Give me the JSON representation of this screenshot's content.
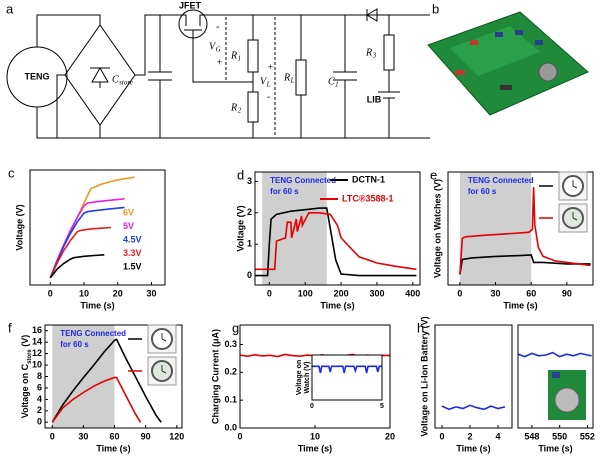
{
  "diagram": {
    "label": "a",
    "labels": [
      {
        "text": "TENG"
      },
      {
        "text": "C",
        "sub": "store"
      },
      {
        "text": "JFET"
      },
      {
        "text": "-"
      },
      {
        "text": "V",
        "sub": "G"
      },
      {
        "text": "+"
      },
      {
        "text": "R",
        "sub": "1"
      },
      {
        "text": "R",
        "sub": "2"
      },
      {
        "text": "+"
      },
      {
        "text": "V",
        "sub": "L"
      },
      {
        "text": "-"
      },
      {
        "text": "R",
        "sub": "L"
      },
      {
        "text": "C",
        "sub": "1"
      },
      {
        "text": "R",
        "sub": "3"
      },
      {
        "text": "LIB"
      }
    ]
  },
  "photo": {
    "label": "b"
  },
  "chart_data": [
    {
      "type": "line",
      "label": "c",
      "xlabel": "Time (s)",
      "ylabel": "Voltage  (V)",
      "xlim": [
        -6,
        34
      ],
      "ylim": [
        -0.5,
        7.5
      ],
      "xticks": [
        0,
        10,
        20,
        30
      ],
      "legend": "right-text",
      "series": [
        {
          "name": "6V",
          "color": "#f0961e",
          "x": [
            0,
            2,
            4,
            6,
            8,
            10,
            12,
            15,
            18,
            21,
            25
          ],
          "values": [
            0,
            1.2,
            2.3,
            3.3,
            4.2,
            5.2,
            6.2,
            6.5,
            6.7,
            6.85,
            7.0
          ]
        },
        {
          "name": "5V",
          "color": "#e81ee8",
          "x": [
            0,
            2,
            4,
            6,
            8,
            10,
            11,
            14,
            18,
            22
          ],
          "values": [
            0,
            1.2,
            2.3,
            3.3,
            4.2,
            5.0,
            5.2,
            5.3,
            5.4,
            5.5
          ]
        },
        {
          "name": "4.5V",
          "color": "#1e3cf0",
          "x": [
            0,
            2,
            4,
            6,
            8,
            10,
            11,
            14,
            18,
            22
          ],
          "values": [
            0,
            1.1,
            2.2,
            3.1,
            3.9,
            4.5,
            4.6,
            4.7,
            4.8,
            4.9
          ]
        },
        {
          "name": "3.3V",
          "color": "#e61e1e",
          "x": [
            0,
            2,
            4,
            6,
            8,
            9,
            12,
            15,
            18
          ],
          "values": [
            0,
            1.0,
            1.9,
            2.6,
            3.2,
            3.3,
            3.4,
            3.45,
            3.5
          ]
        },
        {
          "name": "1.5V",
          "color": "#000000",
          "x": [
            0,
            2,
            4,
            6,
            7,
            10,
            13,
            16
          ],
          "values": [
            0,
            0.6,
            1.0,
            1.3,
            1.4,
            1.5,
            1.55,
            1.6
          ]
        }
      ]
    },
    {
      "type": "line",
      "label": "d",
      "xlabel": "Time (s)",
      "ylabel": "Voltage  (V)",
      "xlim": [
        -40,
        420
      ],
      "ylim": [
        -0.3,
        3.3
      ],
      "xticks": [
        0,
        100,
        200,
        300,
        400
      ],
      "yticks": [
        0,
        1,
        2,
        3
      ],
      "shade": [
        -20,
        160
      ],
      "annotation": [
        "TENG Connected",
        "for 60 s"
      ],
      "legend": "upper-right",
      "series": [
        {
          "name": "DCTN-1",
          "color": "#000000",
          "x": [
            -40,
            -5,
            0,
            5,
            20,
            60,
            100,
            140,
            160,
            170,
            185,
            200,
            250,
            300,
            350,
            410
          ],
          "values": [
            0,
            0,
            1.0,
            1.8,
            1.95,
            2.05,
            2.1,
            2.15,
            2.15,
            1.5,
            0.5,
            0.05,
            0,
            0,
            0,
            0
          ]
        },
        {
          "name": "LTC®3588-1",
          "color": "#e60000",
          "x": [
            -40,
            15,
            20,
            45,
            50,
            60,
            62,
            75,
            78,
            90,
            92,
            110,
            140,
            170,
            190,
            200,
            250,
            300,
            350,
            410
          ],
          "values": [
            0.2,
            0.2,
            1.1,
            1.2,
            1.7,
            1.7,
            1.2,
            1.8,
            1.4,
            1.9,
            1.6,
            2.0,
            2.0,
            1.95,
            1.6,
            1.2,
            0.6,
            0.4,
            0.3,
            0.2
          ]
        }
      ]
    },
    {
      "type": "line",
      "label": "e",
      "xlabel": "Time (s)",
      "ylabel": "Voltage on Watches (V)",
      "xlim": [
        -10,
        112
      ],
      "ylim": [
        -0.5,
        7
      ],
      "xticks": [
        0,
        30,
        60,
        90
      ],
      "shade": [
        0,
        60
      ],
      "annotation": [
        "TENG Connected",
        "for 60 s"
      ],
      "legend": "right-icons",
      "series": [
        {
          "color": "#000000",
          "x": [
            0,
            2,
            10,
            30,
            50,
            60,
            62,
            65,
            70,
            90,
            110
          ],
          "values": [
            0.2,
            1.2,
            1.3,
            1.4,
            1.45,
            1.5,
            1.0,
            1.0,
            1.0,
            0.9,
            0.9
          ]
        },
        {
          "color": "#e60000",
          "x": [
            0,
            2,
            5,
            20,
            40,
            58,
            61,
            62,
            63,
            66,
            70,
            80,
            90,
            100,
            110
          ],
          "values": [
            0.2,
            2.6,
            2.7,
            2.8,
            2.9,
            3.0,
            3.2,
            6.0,
            3.5,
            2.0,
            1.4,
            1.1,
            1.0,
            0.9,
            0.8
          ]
        }
      ]
    },
    {
      "type": "line",
      "label": "f",
      "xlabel": "Time (s)",
      "ylabel": {
        "text": "Voltage on C",
        "sub": "store",
        "unit": " (V)"
      },
      "xlim": [
        -7,
        125
      ],
      "ylim": [
        -1,
        17
      ],
      "xticks": [
        0,
        30,
        60,
        90,
        120
      ],
      "yticks": [
        0,
        2,
        4,
        6,
        8,
        10,
        12,
        14,
        16
      ],
      "shade": [
        0,
        60
      ],
      "annotation": [
        "TENG Connected",
        "for 60 s"
      ],
      "legend": "right-icons",
      "series": [
        {
          "color": "#000000",
          "x": [
            0,
            10,
            20,
            30,
            40,
            50,
            60,
            62,
            70,
            80,
            90,
            100,
            105
          ],
          "values": [
            0,
            3,
            5.5,
            7.8,
            10,
            12.3,
            14.3,
            14.5,
            11.5,
            8,
            4.5,
            1.2,
            0
          ]
        },
        {
          "color": "#e60000",
          "x": [
            0,
            10,
            20,
            30,
            40,
            50,
            60,
            62,
            70,
            80,
            85
          ],
          "values": [
            0,
            2.5,
            4,
            5.2,
            6.3,
            7.2,
            7.8,
            7.8,
            5,
            1.5,
            0
          ]
        }
      ]
    },
    {
      "type": "line",
      "label": "g",
      "xlabel": "Time (s)",
      "ylabel": "Charging Current  (μA)",
      "xlim": [
        0,
        20
      ],
      "ylim": [
        0,
        0.37
      ],
      "xticks": [
        0,
        10,
        20
      ],
      "yticks": [
        {
          "value": 0,
          "label": "0.0"
        },
        0.1,
        0.2,
        0.3
      ],
      "series": [
        {
          "color": "#e60000",
          "x": [
            0,
            1,
            2,
            3,
            4,
            5,
            6,
            7,
            8,
            9,
            10,
            11,
            12,
            13,
            14,
            15,
            16,
            17,
            18,
            19,
            20
          ],
          "values": [
            0.262,
            0.258,
            0.263,
            0.259,
            0.261,
            0.257,
            0.264,
            0.26,
            0.258,
            0.262,
            0.259,
            0.263,
            0.257,
            0.261,
            0.26,
            0.264,
            0.258,
            0.262,
            0.259,
            0.261,
            0.26
          ]
        }
      ]
    },
    {
      "type": "line",
      "ylabel": [
        "Voltage on",
        "Watch (V)"
      ],
      "xlim": [
        0,
        5
      ],
      "ylim": [
        0,
        2
      ],
      "xticks": [
        0,
        5
      ],
      "series": [
        {
          "color": "#1e28e6",
          "x": [
            0,
            0.5,
            0.6,
            0.7,
            1.2,
            1.3,
            1.4,
            2.2,
            2.3,
            2.4,
            3.0,
            3.1,
            3.2,
            3.8,
            3.9,
            4.0,
            4.6,
            4.7,
            4.8,
            5
          ],
          "values": [
            1.5,
            1.5,
            1.2,
            1.5,
            1.5,
            1.25,
            1.5,
            1.5,
            1.2,
            1.5,
            1.5,
            1.3,
            1.5,
            1.5,
            1.2,
            1.5,
            1.5,
            1.25,
            1.5,
            1.5
          ]
        }
      ]
    },
    {
      "type": "line",
      "label": "h",
      "xlabel": "Time (s)",
      "ylabel": "Voltage on Li-Ion Battery  (V)",
      "xlim": [
        -0.5,
        5
      ],
      "ylim": [
        0.85,
        2.12
      ],
      "xticks": [
        0,
        2,
        4
      ],
      "series": [
        {
          "color": "#1e28e6",
          "x": [
            0,
            0.5,
            1,
            1.5,
            2,
            2.5,
            3,
            3.5,
            4,
            4.5
          ],
          "values": [
            1.12,
            1.08,
            1.11,
            1.09,
            1.13,
            1.1,
            1.08,
            1.12,
            1.09,
            1.11
          ]
        }
      ]
    },
    {
      "type": "line",
      "xlabel": "Time (s)",
      "xlim": [
        547,
        552.4
      ],
      "ylim": [
        0.85,
        2.12
      ],
      "xticks": [
        548,
        550,
        552
      ],
      "series": [
        {
          "color": "#1e28e6",
          "x": [
            547,
            547.5,
            548,
            548.5,
            549,
            549.5,
            550,
            550.5,
            551,
            551.5,
            552,
            552.3
          ],
          "values": [
            1.76,
            1.73,
            1.77,
            1.74,
            1.75,
            1.78,
            1.73,
            1.76,
            1.74,
            1.77,
            1.75,
            1.74
          ]
        }
      ]
    }
  ]
}
